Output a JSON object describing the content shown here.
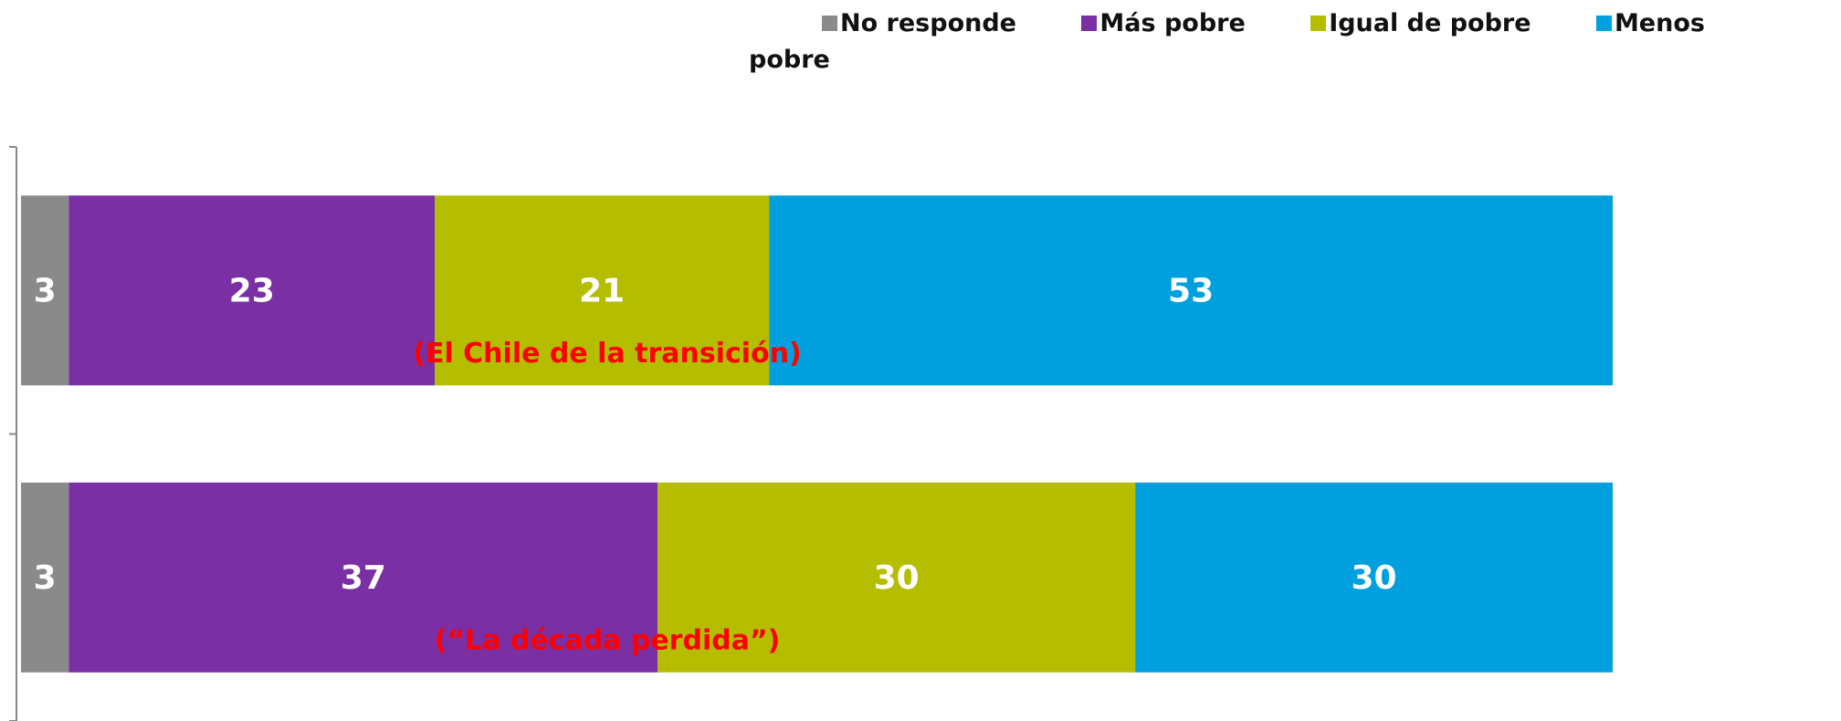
{
  "chart_data": {
    "type": "stacked-bar-horizontal",
    "categories": [
      null,
      null
    ],
    "series": [
      {
        "name": "No responde",
        "color": "#8a8a8a",
        "values": [
          3,
          3
        ]
      },
      {
        "name": "Más pobre",
        "color": "#7b2fa5",
        "values": [
          23,
          37
        ]
      },
      {
        "name": "Igual de pobre",
        "color": "#b5bd00",
        "values": [
          21,
          30
        ]
      },
      {
        "name": "Menos pobre",
        "color": "#00a0df",
        "values": [
          53,
          30
        ]
      }
    ],
    "annotations": [
      "(El Chile de la transición)",
      "(“La década perdida”)"
    ],
    "xlim": [
      0,
      100
    ]
  }
}
